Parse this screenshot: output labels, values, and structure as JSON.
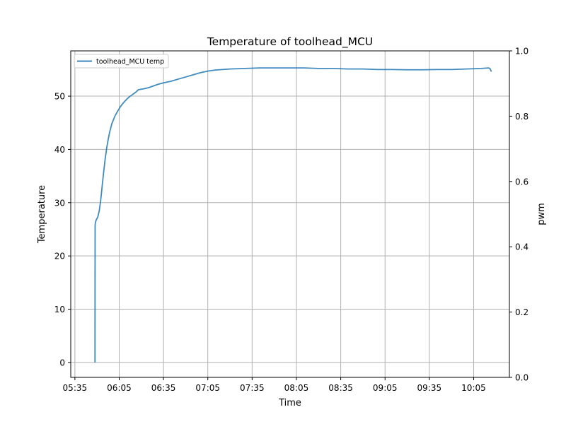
{
  "chart_data": {
    "type": "line",
    "title": "Temperature of toolhead_MCU",
    "xlabel": "Time",
    "ylabel": "Temperature",
    "y2label": "pwm",
    "x_ticks": [
      "05:35",
      "06:05",
      "06:35",
      "07:05",
      "07:35",
      "08:05",
      "08:35",
      "09:05",
      "09:35",
      "10:05"
    ],
    "x_tick_minutes": [
      335,
      365,
      395,
      425,
      455,
      485,
      515,
      545,
      575,
      605
    ],
    "xlim_minutes": [
      332.2,
      629.2
    ],
    "ylim": [
      -2.8,
      58.5
    ],
    "y_ticks": [
      0,
      10,
      20,
      30,
      40,
      50
    ],
    "y2lim": [
      0.0,
      1.0
    ],
    "y2_ticks": [
      "0.0",
      "0.2",
      "0.4",
      "0.6",
      "0.8",
      "1.0"
    ],
    "y2_tick_values": [
      0.0,
      0.2,
      0.4,
      0.6,
      0.8,
      1.0
    ],
    "grid": true,
    "legend_position": "top-left",
    "series": [
      {
        "name": "toolhead_MCU temp",
        "color": "#1f77b4",
        "x_minutes": [
          348.6,
          348.7,
          348.9,
          349.5,
          350.5,
          351.5,
          352.5,
          353.5,
          354.5,
          355.5,
          356.5,
          357.5,
          358.5,
          360,
          362,
          364,
          366,
          368,
          370,
          372,
          374,
          376,
          378,
          380,
          382,
          385,
          388,
          391,
          395,
          400,
          405,
          410,
          415,
          420,
          425,
          430,
          435,
          440,
          445,
          450,
          455,
          460,
          470,
          480,
          490,
          500,
          510,
          520,
          530,
          540,
          550,
          560,
          570,
          580,
          590,
          600,
          610,
          615,
          616,
          617
        ],
        "values": [
          0.0,
          25.8,
          26.3,
          26.8,
          27.3,
          28.5,
          30.5,
          33.2,
          35.8,
          38.2,
          40.2,
          41.8,
          43.2,
          44.8,
          46.2,
          47.2,
          48.1,
          48.8,
          49.4,
          49.9,
          50.3,
          50.7,
          51.2,
          51.3,
          51.4,
          51.6,
          51.9,
          52.2,
          52.5,
          52.8,
          53.2,
          53.6,
          54.0,
          54.4,
          54.7,
          54.9,
          55.0,
          55.1,
          55.15,
          55.2,
          55.25,
          55.3,
          55.3,
          55.3,
          55.3,
          55.2,
          55.2,
          55.1,
          55.1,
          55.0,
          55.0,
          54.95,
          54.95,
          55.0,
          55.0,
          55.1,
          55.2,
          55.3,
          55.2,
          54.6
        ]
      }
    ]
  }
}
